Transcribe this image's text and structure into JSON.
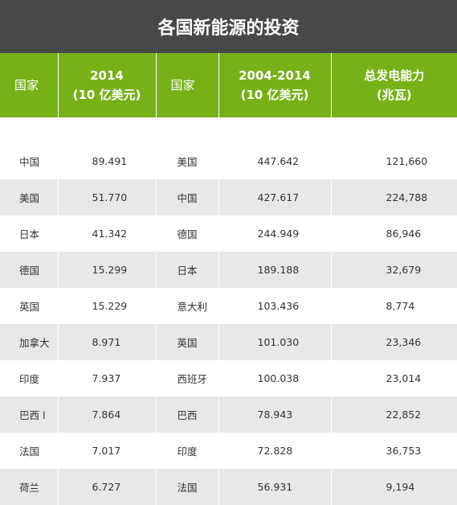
{
  "title": "各国新能源的投资",
  "columns": {
    "country": "国家",
    "inv2014_line1": "2014",
    "inv2014_line2": "(10 亿美元)",
    "country2": "国家",
    "inv0414_line1": "2004-2014",
    "inv0414_line2": "(10 亿美元)",
    "capacity_line1": "总发电能力",
    "capacity_line2": "(兆瓦)"
  },
  "rows": [
    {
      "country": "中国",
      "inv2014": "89.491",
      "country2": "美国",
      "inv0414": "447.642",
      "capacity": "121,660"
    },
    {
      "country": "美国",
      "inv2014": "51.770",
      "country2": "中国",
      "inv0414": "427.617",
      "capacity": "224,788"
    },
    {
      "country": "日本",
      "inv2014": "41.342",
      "country2": "德国",
      "inv0414": "244.949",
      "capacity": "86,946"
    },
    {
      "country": "德国",
      "inv2014": "15.299",
      "country2": "日本",
      "inv0414": "189.188",
      "capacity": "32,679"
    },
    {
      "country": "英国",
      "inv2014": "15.229",
      "country2": "意大利",
      "inv0414": "103.436",
      "capacity": "8,774"
    },
    {
      "country": "加拿大",
      "inv2014": "8.971",
      "country2": "英国",
      "inv0414": "101.030",
      "capacity": "23,346"
    },
    {
      "country": "印度",
      "inv2014": "7.937",
      "country2": "西班牙",
      "inv0414": "100.038",
      "capacity": "23,014"
    },
    {
      "country": "巴西 l",
      "inv2014": "7.864",
      "country2": "巴西",
      "inv0414": "78.943",
      "capacity": "22,852"
    },
    {
      "country": "法国",
      "inv2014": "7.017",
      "country2": "印度",
      "inv0414": "72.828",
      "capacity": "36,753"
    },
    {
      "country": "荷兰",
      "inv2014": "6.727",
      "country2": "法国",
      "inv0414": "56.931",
      "capacity": "9,194"
    }
  ],
  "colors": {
    "title_bg": "#484848",
    "header_bg": "#77b118",
    "stripe": "#e8e8e8"
  }
}
